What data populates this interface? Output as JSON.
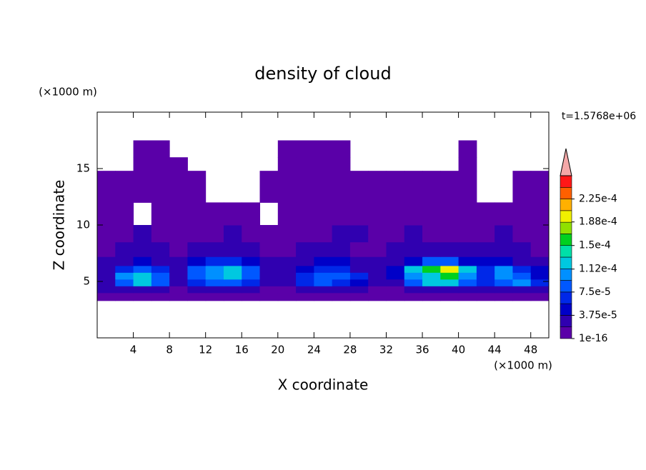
{
  "chart_data": {
    "type": "contour",
    "title": "density of cloud",
    "x_label": "X coordinate",
    "y_label": "Z coordinate",
    "x_unit": "(×1000 m)",
    "y_unit": "(×1000 m)",
    "time_label": "t=1.5768e+06",
    "xlim": [
      0,
      50
    ],
    "ylim": [
      0,
      20
    ],
    "xticks": [
      4,
      8,
      12,
      16,
      20,
      24,
      28,
      32,
      36,
      40,
      44,
      48
    ],
    "yticks": [
      5,
      10,
      15
    ],
    "x_edges": [
      0,
      2,
      4,
      6,
      8,
      10,
      12,
      14,
      16,
      18,
      20,
      22,
      24,
      26,
      28,
      30,
      32,
      34,
      36,
      38,
      40,
      42,
      44,
      46,
      48,
      50
    ],
    "z_edges": [
      3.3,
      4,
      4.6,
      5.2,
      5.8,
      6.4,
      7.2,
      8.5,
      10,
      12,
      14.8,
      16,
      17.5
    ],
    "values": [
      [
        5e-06,
        5e-06,
        5e-06,
        5e-06,
        5e-06,
        5e-06,
        5e-06,
        5e-06,
        5e-06,
        5e-06,
        5e-06,
        5e-06,
        5e-06,
        5e-06,
        5e-06,
        5e-06,
        5e-06,
        5e-06,
        5e-06,
        5e-06,
        5e-06,
        5e-06,
        5e-06,
        5e-06,
        5e-06
      ],
      [
        3e-05,
        3e-05,
        3e-05,
        3e-05,
        1e-05,
        3e-05,
        3e-05,
        3e-05,
        3e-05,
        1e-05,
        1e-05,
        3e-05,
        3e-05,
        3e-05,
        3e-05,
        1e-05,
        1e-05,
        3e-05,
        3e-05,
        3e-05,
        3e-05,
        3e-05,
        3e-05,
        3e-05,
        3e-05
      ],
      [
        2e-05,
        8e-05,
        0.00012,
        8e-05,
        2e-05,
        6e-05,
        8e-05,
        8e-05,
        6e-05,
        2e-05,
        2e-05,
        6e-05,
        8e-05,
        6e-05,
        4e-05,
        2e-05,
        2e-05,
        8e-05,
        0.00012,
        0.00012,
        8e-05,
        6e-05,
        8e-05,
        0.0001,
        6e-05
      ],
      [
        3e-05,
        0.00011,
        0.00013,
        9e-05,
        3e-05,
        9e-05,
        0.00011,
        0.00013,
        9e-05,
        3e-05,
        3e-05,
        7e-05,
        9e-05,
        9e-05,
        6e-05,
        3e-05,
        4e-05,
        0.00011,
        0.00013,
        0.00016,
        0.00011,
        6e-05,
        0.00011,
        8e-05,
        5e-05
      ],
      [
        3e-05,
        7e-05,
        9e-05,
        6e-05,
        2e-05,
        8e-05,
        0.00011,
        0.00013,
        9e-05,
        3e-05,
        2e-05,
        5e-05,
        7e-05,
        6e-05,
        3e-05,
        2e-05,
        4e-05,
        0.00013,
        0.00015,
        0.00019,
        0.00013,
        7e-05,
        0.00011,
        7e-05,
        4e-05
      ],
      [
        2e-05,
        3e-05,
        4e-05,
        3e-05,
        2e-05,
        4e-05,
        6e-05,
        7e-05,
        5e-05,
        2e-05,
        2e-05,
        3e-05,
        4e-05,
        4e-05,
        2e-05,
        2e-05,
        3e-05,
        5e-05,
        8e-05,
        8e-05,
        5e-05,
        4e-05,
        5e-05,
        3e-05,
        2e-05
      ],
      [
        1e-05,
        2e-05,
        2e-05,
        2e-05,
        1e-05,
        2e-05,
        3e-05,
        3e-05,
        2e-05,
        1e-05,
        1e-05,
        2e-05,
        2e-05,
        2e-05,
        1e-05,
        1e-05,
        2e-05,
        3e-05,
        3e-05,
        3e-05,
        2e-05,
        2e-05,
        2e-05,
        2e-05,
        1e-05
      ],
      [
        1e-05,
        5e-06,
        2e-05,
        1e-05,
        5e-06,
        5e-06,
        1e-05,
        2e-05,
        5e-06,
        5e-06,
        5e-06,
        5e-06,
        1e-05,
        2e-05,
        2e-05,
        1e-05,
        1e-05,
        2e-05,
        1e-05,
        5e-06,
        5e-06,
        1e-05,
        2e-05,
        5e-06,
        5e-06
      ],
      [
        5e-06,
        5e-06,
        null,
        5e-06,
        5e-06,
        5e-06,
        5e-06,
        5e-06,
        5e-06,
        null,
        5e-06,
        5e-06,
        5e-06,
        5e-06,
        5e-06,
        5e-06,
        5e-06,
        5e-06,
        5e-06,
        5e-06,
        5e-06,
        5e-06,
        5e-06,
        5e-06,
        5e-06
      ],
      [
        5e-06,
        5e-06,
        5e-06,
        5e-06,
        5e-06,
        5e-06,
        null,
        null,
        null,
        5e-06,
        5e-06,
        5e-06,
        5e-06,
        5e-06,
        5e-06,
        5e-06,
        5e-06,
        5e-06,
        5e-06,
        5e-06,
        5e-06,
        null,
        null,
        5e-06,
        5e-06
      ],
      [
        null,
        null,
        5e-06,
        5e-06,
        5e-06,
        null,
        null,
        null,
        null,
        null,
        5e-06,
        5e-06,
        5e-06,
        5e-06,
        null,
        null,
        null,
        null,
        null,
        null,
        5e-06,
        null,
        null,
        null,
        null
      ],
      [
        null,
        null,
        5e-06,
        5e-06,
        null,
        null,
        null,
        null,
        null,
        null,
        5e-06,
        5e-06,
        5e-06,
        5e-06,
        null,
        null,
        null,
        null,
        null,
        null,
        5e-06,
        null,
        null,
        null,
        null
      ]
    ],
    "colorbar": {
      "lim": [
        0,
        0.0002625
      ],
      "step": 1.875e-05,
      "colors": [
        "#5a00a8",
        "#3000b0",
        "#0000c8",
        "#0028e8",
        "#0058ff",
        "#0090ff",
        "#00c8e0",
        "#00e0a8",
        "#00d020",
        "#90e000",
        "#f0f000",
        "#ffb000",
        "#ff6000",
        "#ff1818"
      ],
      "extend_color": "#f4a8a8",
      "ticks": [
        {
          "value": 1e-16,
          "label": "1e-16"
        },
        {
          "value": 3.75e-05,
          "label": "3.75e-5"
        },
        {
          "value": 7.5e-05,
          "label": "7.5e-5"
        },
        {
          "value": 0.000112,
          "label": "1.12e-4"
        },
        {
          "value": 0.00015,
          "label": "1.5e-4"
        },
        {
          "value": 0.000188,
          "label": "1.88e-4"
        },
        {
          "value": 0.000225,
          "label": "2.25e-4"
        }
      ]
    }
  }
}
